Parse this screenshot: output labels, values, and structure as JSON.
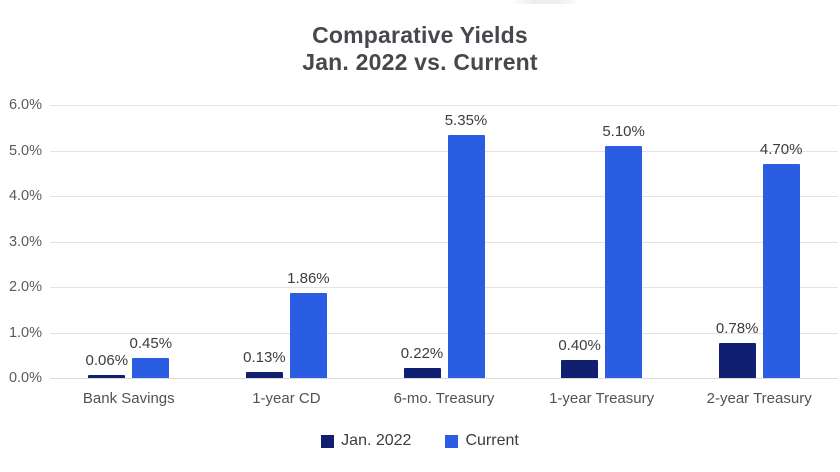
{
  "page": {
    "background": "#ffffff",
    "top_strip_present": true
  },
  "title": {
    "line1": "Comparative Yields",
    "line2": "Jan. 2022 vs. Current"
  },
  "chart_data": {
    "type": "bar",
    "title": "Comparative Yields Jan. 2022 vs. Current",
    "categories": [
      "Bank Savings",
      "1-year CD",
      "6-mo. Treasury",
      "1-year Treasury",
      "2-year Treasury"
    ],
    "series": [
      {
        "name": "Jan. 2022",
        "color": "#101f70",
        "values": [
          0.06,
          0.13,
          0.22,
          0.4,
          0.78
        ],
        "value_labels": [
          "0.06%",
          "0.13%",
          "0.22%",
          "0.40%",
          "0.78%"
        ]
      },
      {
        "name": "Current",
        "color": "#2b5de2",
        "values": [
          0.45,
          1.86,
          5.35,
          5.1,
          4.7
        ],
        "value_labels": [
          "0.45%",
          "1.86%",
          "5.35%",
          "5.10%",
          "4.70%"
        ]
      }
    ],
    "xlabel": "",
    "ylabel": "",
    "y_axis": {
      "min": 0,
      "max": 6,
      "step": 1,
      "tick_labels": [
        "0.0%",
        "1.0%",
        "2.0%",
        "3.0%",
        "4.0%",
        "5.0%",
        "6.0%"
      ]
    },
    "grid": true,
    "data_labels": true,
    "legend_position": "bottom-center"
  },
  "legend": {
    "entries": [
      {
        "label": "Jan. 2022",
        "color": "#101f70"
      },
      {
        "label": "Current",
        "color": "#2b5de2"
      }
    ]
  },
  "colors": {
    "series_jan_2022": "#101f70",
    "series_current": "#2b5de2",
    "title_text": "#47484d",
    "axis_text": "#5a5a5e",
    "value_label_text": "#3c3d41",
    "gridline": "#e3e3e3",
    "background": "#ffffff"
  }
}
